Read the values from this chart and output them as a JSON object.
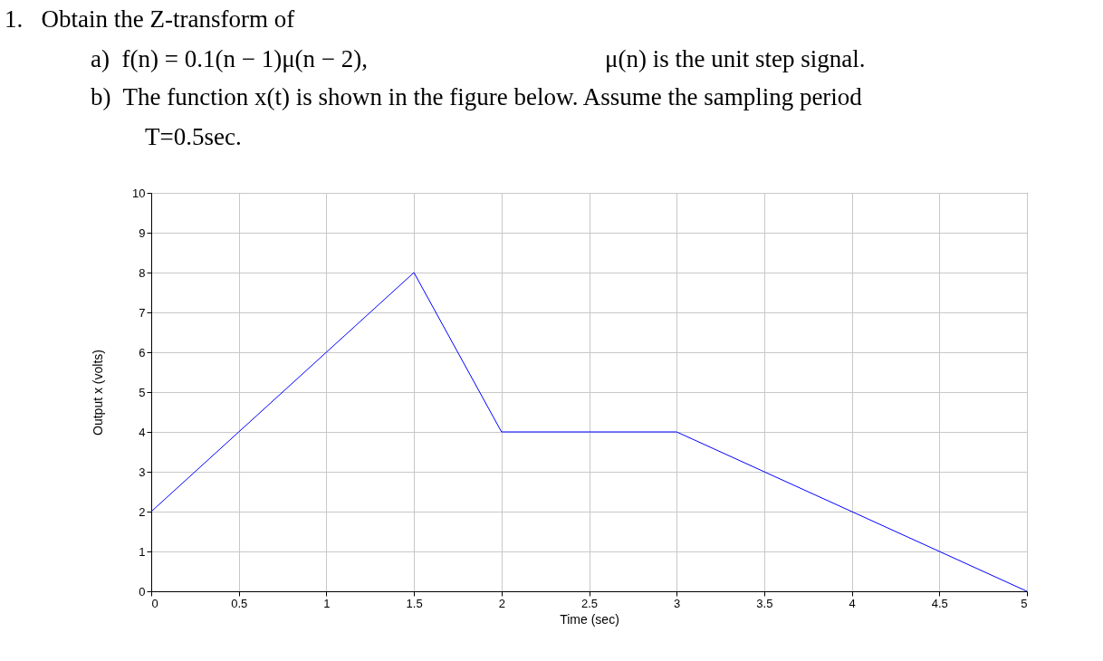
{
  "chart_data": {
    "type": "line",
    "title": "1.   Obtain the Z-transform of",
    "annotations": [
      "a)  f(n) = 0.1(n − 1)μ(n − 2),",
      "μ(n) is the unit step signal.",
      "b)  The function x(t) is shown in the figure below. Assume the sampling period",
      "T=0.5sec."
    ],
    "xlabel": "Time (sec)",
    "ylabel": "Output x (volts)",
    "x": [
      0,
      1.5,
      2,
      3,
      5
    ],
    "series": [
      {
        "color": "#0000ff",
        "values": [
          2,
          8,
          4,
          4,
          0
        ]
      }
    ],
    "xlim": [
      0,
      5
    ],
    "xticks": [
      0,
      0.5,
      1,
      1.5,
      2,
      2.5,
      3,
      3.5,
      4,
      4.5,
      5
    ],
    "ylim": [
      0,
      10
    ],
    "yticks": [
      0,
      1,
      2,
      3,
      4,
      5,
      6,
      7,
      8,
      9,
      10
    ],
    "grid": true
  }
}
